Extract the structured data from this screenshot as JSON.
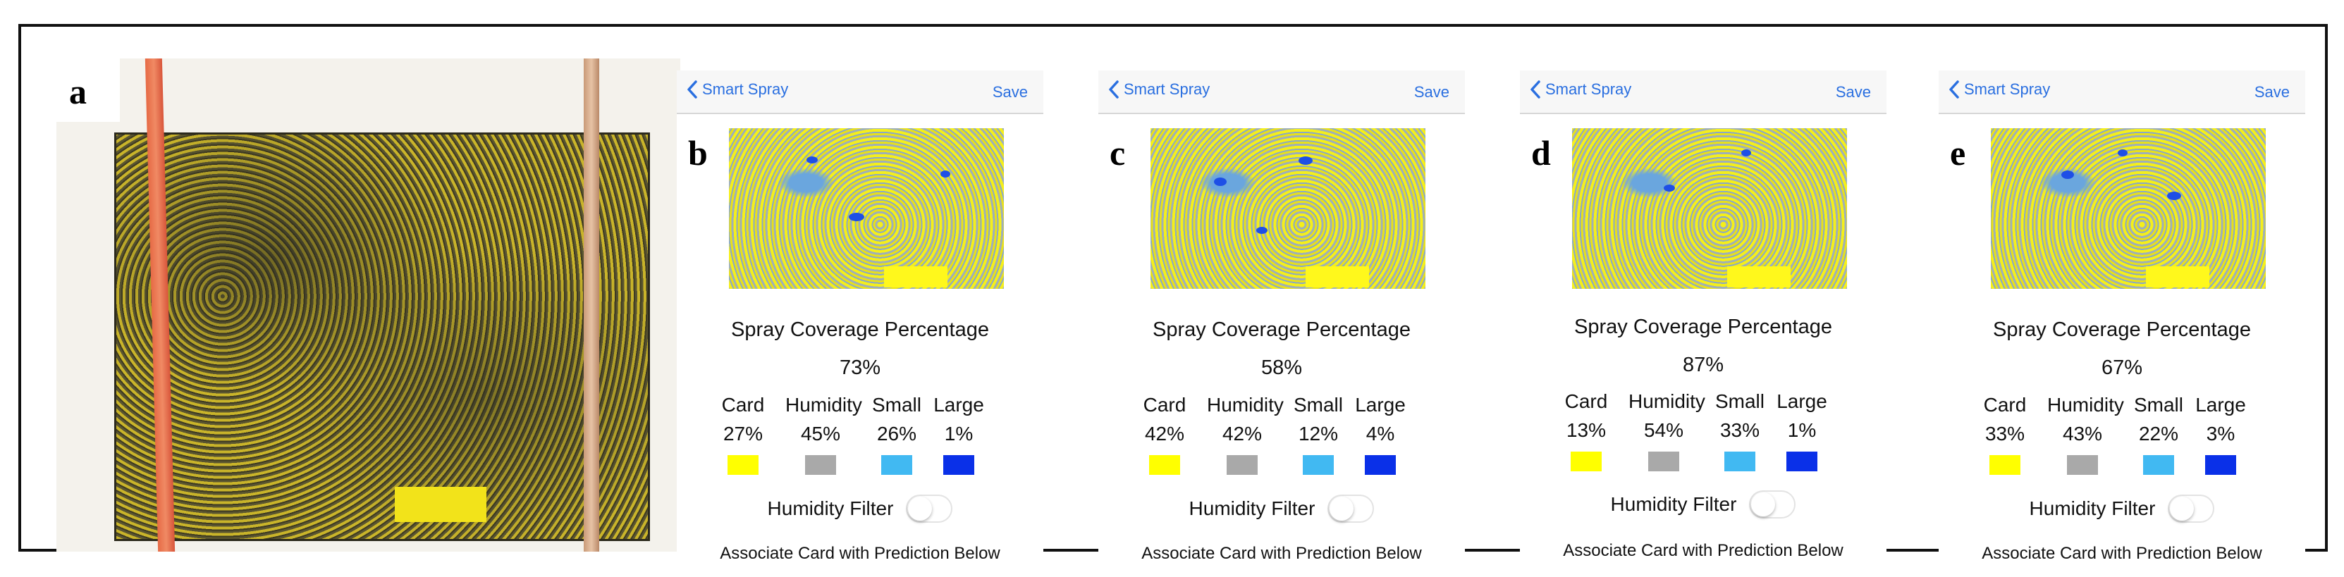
{
  "panel_a": {
    "label": "a"
  },
  "colors": {
    "card": "#ffff00",
    "humidity": "#a9a9a9",
    "small": "#41b9f2",
    "large": "#0a30e8",
    "link": "#2a6fe0"
  },
  "icons": {
    "back": "chevron-left-icon",
    "toggle": "toggle-switch"
  },
  "screens": [
    {
      "label": "b",
      "nav_back": "Smart Spray",
      "nav_save": "Save",
      "title": "Spray Coverage Percentage",
      "percent": "73%",
      "columns": [
        {
          "name": "Card",
          "value": "27%"
        },
        {
          "name": "Humidity",
          "value": "45%"
        },
        {
          "name": "Small",
          "value": "26%"
        },
        {
          "name": "Large",
          "value": "1%"
        }
      ],
      "filter_label": "Humidity Filter",
      "filter_on": false,
      "associate": "Associate Card with Prediction Below"
    },
    {
      "label": "c",
      "nav_back": "Smart Spray",
      "nav_save": "Save",
      "title": "Spray Coverage Percentage",
      "percent": "58%",
      "columns": [
        {
          "name": "Card",
          "value": "42%"
        },
        {
          "name": "Humidity",
          "value": "42%"
        },
        {
          "name": "Small",
          "value": "12%"
        },
        {
          "name": "Large",
          "value": "4%"
        }
      ],
      "filter_label": "Humidity Filter",
      "filter_on": false,
      "associate": "Associate Card with Prediction Below"
    },
    {
      "label": "d",
      "nav_back": "Smart Spray",
      "nav_save": "Save",
      "title": "Spray Coverage Percentage",
      "percent": "87%",
      "columns": [
        {
          "name": "Card",
          "value": "13%"
        },
        {
          "name": "Humidity",
          "value": "54%"
        },
        {
          "name": "Small",
          "value": "33%"
        },
        {
          "name": "Large",
          "value": "1%"
        }
      ],
      "filter_label": "Humidity Filter",
      "filter_on": false,
      "associate": "Associate Card with Prediction Below"
    },
    {
      "label": "e",
      "nav_back": "Smart Spray",
      "nav_save": "Save",
      "title": "Spray Coverage Percentage",
      "percent": "67%",
      "columns": [
        {
          "name": "Card",
          "value": "33%"
        },
        {
          "name": "Humidity",
          "value": "43%"
        },
        {
          "name": "Small",
          "value": "22%"
        },
        {
          "name": "Large",
          "value": "3%"
        }
      ],
      "filter_label": "Humidity Filter",
      "filter_on": false,
      "associate": "Associate Card with Prediction Below"
    }
  ]
}
